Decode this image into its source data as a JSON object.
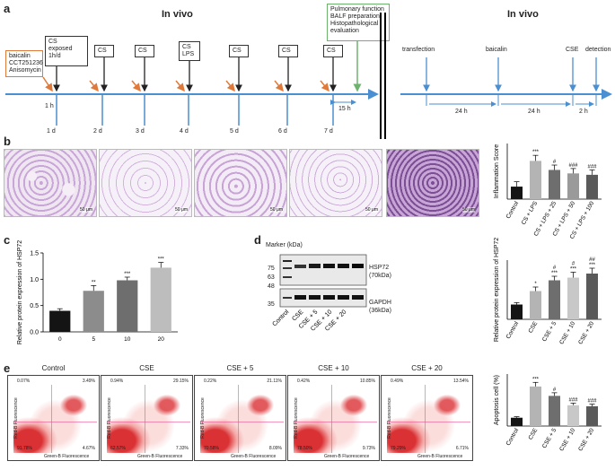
{
  "panel_a": {
    "label": "a",
    "left_title": "In vivo",
    "right_title": "In vivo",
    "treatment_box": [
      "baicalin",
      "CCT251236",
      "Anisomycin"
    ],
    "cs_exposed_box": [
      "CS",
      "exposed",
      "1h/d"
    ],
    "cs_label": "CS",
    "cs_lps_box": [
      "CS",
      "LPS"
    ],
    "pulmonary_box": [
      "Pulmonary function",
      "BALF preparation",
      "Histopathological",
      "evaluation"
    ],
    "one_hour": "1 h",
    "fifteen_hours": "15 h",
    "days": [
      "1 d",
      "2 d",
      "3 d",
      "4 d",
      "5 d",
      "6 d",
      "7 d"
    ],
    "right_events": [
      "transfection",
      "baicalin",
      "CSE",
      "detection"
    ],
    "right_intervals": [
      "24 h",
      "24 h",
      "2 h"
    ]
  },
  "panel_b": {
    "label": "b",
    "scale_bar": "50 μm"
  },
  "panel_c": {
    "label": "c"
  },
  "panel_d": {
    "label": "d",
    "marker_label": "Marker (kDa)",
    "markers_top": [
      "75",
      "63",
      "48"
    ],
    "marker_bottom": "35",
    "band_top": "HSP72",
    "band_top_size": "(70kDa)",
    "band_bottom": "GAPDH",
    "band_bottom_size": "(36kDa)",
    "lanes": [
      "Control",
      "CSE",
      "CSE + 5",
      "CSE + 10",
      "CSE + 20"
    ]
  },
  "panel_e": {
    "label": "e",
    "axis_x": "Green-B Fluorescence",
    "axis_y": "Red-B Fluorescence",
    "plots": [
      {
        "title": "Control",
        "ul": "0.07%",
        "ur": "3.49%",
        "ll": "91.78%",
        "lr": "4.67%"
      },
      {
        "title": "CSE",
        "ul": "0.94%",
        "ur": "29.15%",
        "ll": "62.57%",
        "lr": "7.33%"
      },
      {
        "title": "CSE + 5",
        "ul": "0.22%",
        "ur": "21.11%",
        "ll": "70.58%",
        "lr": "8.09%"
      },
      {
        "title": "CSE + 10",
        "ul": "0.42%",
        "ur": "10.85%",
        "ll": "78.50%",
        "lr": "9.73%"
      },
      {
        "title": "CSE + 20",
        "ul": "0.49%",
        "ur": "13.54%",
        "ll": "79.29%",
        "lr": "6.71%"
      }
    ]
  },
  "chart_data": [
    {
      "id": "inflammation",
      "type": "bar",
      "ylabel": "Inflammation Score",
      "categories": [
        "Control",
        "CS + LPS",
        "CS + LPS + 25",
        "CS + LPS + 50",
        "CS + LPS + 100"
      ],
      "values": [
        0.9,
        2.75,
        2.1,
        1.85,
        1.75
      ],
      "errors": [
        0.35,
        0.4,
        0.35,
        0.35,
        0.35
      ],
      "stars": [
        "",
        "***",
        "#",
        "###",
        "###"
      ],
      "colors": [
        "#141414",
        "#b4b4b4",
        "#6e6e6e",
        "#9a9a9a",
        "#5a5a5a"
      ],
      "ylim": [
        0,
        4
      ],
      "yticks": []
    },
    {
      "id": "hsp72_c",
      "type": "bar",
      "ylabel": "Relative protein expression of HSP72",
      "categories": [
        "0",
        "5",
        "10",
        "20"
      ],
      "values": [
        0.4,
        0.78,
        0.98,
        1.22
      ],
      "errors": [
        0.04,
        0.1,
        0.06,
        0.1
      ],
      "stars": [
        "",
        "**",
        "***",
        "***"
      ],
      "colors": [
        "#141414",
        "#8c8c8c",
        "#6e6e6e",
        "#bdbdbd"
      ],
      "ylim": [
        0,
        1.5
      ],
      "yticks": [
        "0.0",
        "0.5",
        "1.0",
        "1.5"
      ]
    },
    {
      "id": "hsp72_d",
      "type": "bar",
      "ylabel": "Relative protein expression of HSP72",
      "categories": [
        "Control",
        "CSE",
        "CSE + 5",
        "CSE + 10",
        "CSE + 20"
      ],
      "values": [
        0.55,
        1.05,
        1.45,
        1.55,
        1.7
      ],
      "errors": [
        0.07,
        0.15,
        0.15,
        0.2,
        0.2
      ],
      "stars": [
        "",
        "*",
        "#\n***",
        "#\n***",
        "##\n***"
      ],
      "colors": [
        "#141414",
        "#b4b4b4",
        "#6e6e6e",
        "#c8c8c8",
        "#5a5a5a"
      ],
      "ylim": [
        0,
        2.2
      ],
      "yticks": []
    },
    {
      "id": "apoptosis",
      "type": "bar",
      "ylabel": "Apoptosis cell (%)",
      "categories": [
        "Control",
        "CSE",
        "CSE + 5",
        "CSE + 10",
        "CSE + 20"
      ],
      "values": [
        8,
        38,
        29,
        20,
        19
      ],
      "errors": [
        1,
        4,
        3,
        2,
        2
      ],
      "stars": [
        "",
        "***",
        "#",
        "###",
        "###"
      ],
      "colors": [
        "#141414",
        "#b4b4b4",
        "#6e6e6e",
        "#c8c8c8",
        "#5a5a5a"
      ],
      "ylim": [
        0,
        50
      ],
      "yticks": []
    }
  ]
}
